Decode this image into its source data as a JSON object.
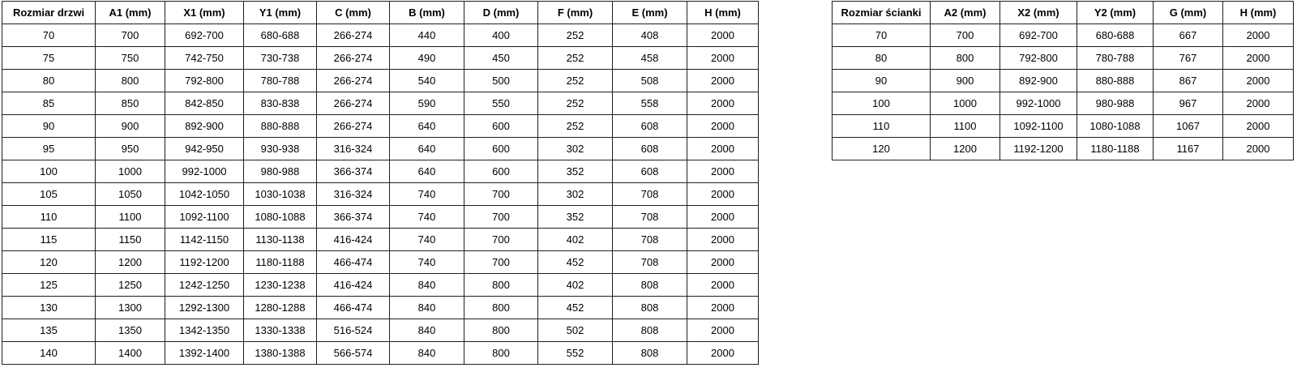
{
  "page": {
    "background_color": "#ffffff",
    "border_color": "#1f1f1f",
    "text_color": "#000000"
  },
  "door_table": {
    "title": "Rozmiar drzwi table",
    "headers": [
      "Rozmiar drzwi",
      "A1 (mm)",
      "X1 (mm)",
      "Y1 (mm)",
      "C (mm)",
      "B (mm)",
      "D (mm)",
      "F (mm)",
      "E (mm)",
      "H (mm)"
    ],
    "rows": [
      [
        "70",
        "700",
        "692-700",
        "680-688",
        "266-274",
        "440",
        "400",
        "252",
        "408",
        "2000"
      ],
      [
        "75",
        "750",
        "742-750",
        "730-738",
        "266-274",
        "490",
        "450",
        "252",
        "458",
        "2000"
      ],
      [
        "80",
        "800",
        "792-800",
        "780-788",
        "266-274",
        "540",
        "500",
        "252",
        "508",
        "2000"
      ],
      [
        "85",
        "850",
        "842-850",
        "830-838",
        "266-274",
        "590",
        "550",
        "252",
        "558",
        "2000"
      ],
      [
        "90",
        "900",
        "892-900",
        "880-888",
        "266-274",
        "640",
        "600",
        "252",
        "608",
        "2000"
      ],
      [
        "95",
        "950",
        "942-950",
        "930-938",
        "316-324",
        "640",
        "600",
        "302",
        "608",
        "2000"
      ],
      [
        "100",
        "1000",
        "992-1000",
        "980-988",
        "366-374",
        "640",
        "600",
        "352",
        "608",
        "2000"
      ],
      [
        "105",
        "1050",
        "1042-1050",
        "1030-1038",
        "316-324",
        "740",
        "700",
        "302",
        "708",
        "2000"
      ],
      [
        "110",
        "1100",
        "1092-1100",
        "1080-1088",
        "366-374",
        "740",
        "700",
        "352",
        "708",
        "2000"
      ],
      [
        "115",
        "1150",
        "1142-1150",
        "1130-1138",
        "416-424",
        "740",
        "700",
        "402",
        "708",
        "2000"
      ],
      [
        "120",
        "1200",
        "1192-1200",
        "1180-1188",
        "466-474",
        "740",
        "700",
        "452",
        "708",
        "2000"
      ],
      [
        "125",
        "1250",
        "1242-1250",
        "1230-1238",
        "416-424",
        "840",
        "800",
        "402",
        "808",
        "2000"
      ],
      [
        "130",
        "1300",
        "1292-1300",
        "1280-1288",
        "466-474",
        "840",
        "800",
        "452",
        "808",
        "2000"
      ],
      [
        "135",
        "1350",
        "1342-1350",
        "1330-1338",
        "516-524",
        "840",
        "800",
        "502",
        "808",
        "2000"
      ],
      [
        "140",
        "1400",
        "1392-1400",
        "1380-1388",
        "566-574",
        "840",
        "800",
        "552",
        "808",
        "2000"
      ]
    ]
  },
  "wall_table": {
    "title": "Rozmiar ścianki table",
    "headers": [
      "Rozmiar ścianki",
      "A2 (mm)",
      "X2 (mm)",
      "Y2 (mm)",
      "G (mm)",
      "H (mm)"
    ],
    "rows": [
      [
        "70",
        "700",
        "692-700",
        "680-688",
        "667",
        "2000"
      ],
      [
        "80",
        "800",
        "792-800",
        "780-788",
        "767",
        "2000"
      ],
      [
        "90",
        "900",
        "892-900",
        "880-888",
        "867",
        "2000"
      ],
      [
        "100",
        "1000",
        "992-1000",
        "980-988",
        "967",
        "2000"
      ],
      [
        "110",
        "1100",
        "1092-1100",
        "1080-1088",
        "1067",
        "2000"
      ],
      [
        "120",
        "1200",
        "1192-1200",
        "1180-1188",
        "1167",
        "2000"
      ]
    ]
  }
}
